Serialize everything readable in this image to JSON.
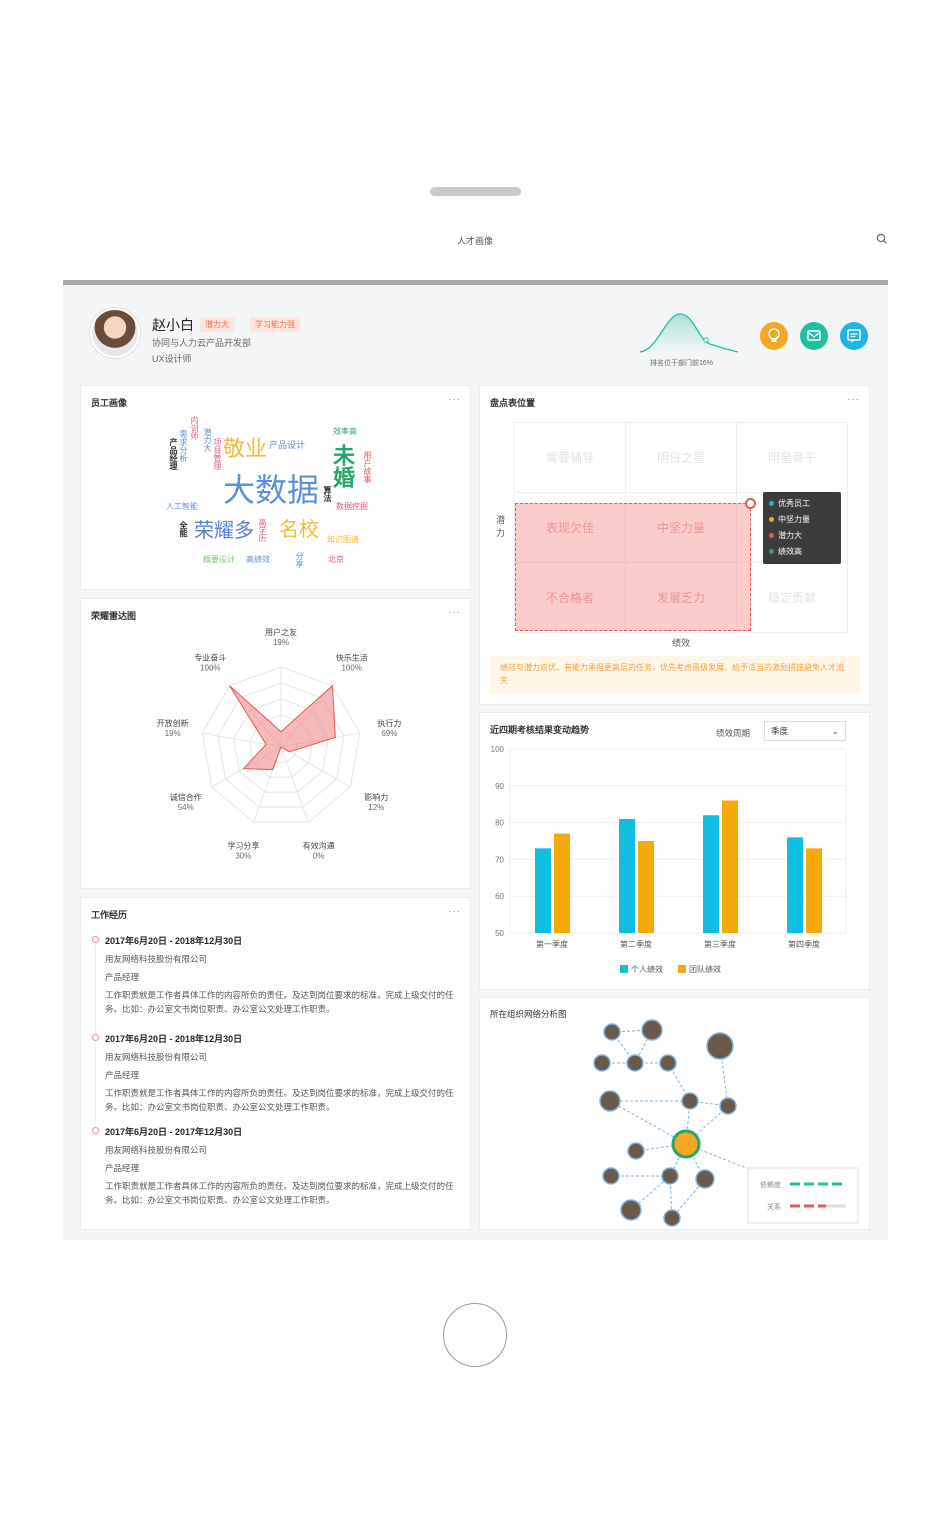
{
  "nav": {
    "title": "人才画像"
  },
  "profile": {
    "name": "赵小白",
    "tags": [
      "潜力大",
      "学习能力强"
    ],
    "department": "协同与人力云产品开发部",
    "job_title": "UX设计师",
    "rank_label": "排名位于部门前16%",
    "actions": [
      "bulb-icon",
      "mail-icon",
      "message-icon"
    ],
    "action_colors": [
      "#f5a623",
      "#1fbfa0",
      "#1eb4e6"
    ]
  },
  "portrait": {
    "title": "员工画像",
    "more": "···",
    "words": [
      {
        "text": "大数据",
        "color": "#5b8fd9"
      },
      {
        "text": "敬业",
        "color": "#f2b93b"
      },
      {
        "text": "未婚",
        "color": "#27a56b"
      },
      {
        "text": "荣耀多",
        "color": "#5b7fcf"
      },
      {
        "text": "名校",
        "color": "#f2b93b"
      },
      {
        "text": "产品设计",
        "color": "#5b8fd9"
      },
      {
        "text": "效率高",
        "color": "#27a56b"
      },
      {
        "text": "人工智能",
        "color": "#5b8fd9"
      },
      {
        "text": "数据挖掘",
        "color": "#e05a8a"
      },
      {
        "text": "知识图谱",
        "color": "#f2b93b"
      },
      {
        "text": "概要设计",
        "color": "#7bc96f"
      },
      {
        "text": "高绩效",
        "color": "#5b8fd9"
      },
      {
        "text": "北京",
        "color": "#e05a5a"
      },
      {
        "text": "内训师",
        "color": "#e05a8a"
      },
      {
        "text": "潜力大",
        "color": "#5b8fd9"
      },
      {
        "text": "需求分析",
        "color": "#5b8fd9"
      },
      {
        "text": "项目管理",
        "color": "#e05a8a"
      },
      {
        "text": "产品经理",
        "color": "#333333"
      },
      {
        "text": "用户故事",
        "color": "#e05a5a"
      },
      {
        "text": "算法",
        "color": "#333333"
      },
      {
        "text": "全能",
        "color": "#333333"
      },
      {
        "text": "高学历",
        "color": "#e05a8a"
      },
      {
        "text": "分享",
        "color": "#1eb4e6"
      }
    ]
  },
  "grid": {
    "title": "盘点表位置",
    "more": "···",
    "y_label": "潜力",
    "x_label": "绩效",
    "cells": [
      "需要辅导",
      "明日之星",
      "明星骨干",
      "表现欠佳",
      "中坚力量",
      "",
      "不合格者",
      "发展乏力",
      "稳定贡献"
    ],
    "legend": [
      {
        "label": "优秀员工",
        "color": "#1eb4e6"
      },
      {
        "label": "中坚力量",
        "color": "#f5a623"
      },
      {
        "label": "潜力大",
        "color": "#e05a5a"
      },
      {
        "label": "绩效高",
        "color": "#27a56b"
      }
    ],
    "note": "绩效与潜力双优，有能力承担更高层的任务，优先考虑晋级发展，给予适当的激励措施避免人才流失"
  },
  "radar": {
    "title": "荣耀雷达图",
    "more": "···",
    "axes": [
      {
        "name": "用户之友",
        "value": "19%"
      },
      {
        "name": "快乐生活",
        "value": "100%"
      },
      {
        "name": "执行力",
        "value": "69%"
      },
      {
        "name": "影响力",
        "value": "12%"
      },
      {
        "name": "有效沟通",
        "value": "0%"
      },
      {
        "name": "学习分享",
        "value": "30%"
      },
      {
        "name": "诚信合作",
        "value": "54%"
      },
      {
        "name": "开放创新",
        "value": "19%"
      },
      {
        "name": "专业奋斗",
        "value": "100%"
      }
    ],
    "fill_color": "#f08a8a"
  },
  "chart_data": {
    "type": "bar",
    "title": "近四期考核结果变动趋势",
    "categories": [
      "第一季度",
      "第二季度",
      "第三季度",
      "第四季度"
    ],
    "series": [
      {
        "name": "个人绩效",
        "values": [
          73,
          81,
          82,
          76
        ],
        "color": "#12bde2"
      },
      {
        "name": "团队绩效",
        "values": [
          77,
          75,
          86,
          73
        ],
        "color": "#f7a90b"
      }
    ],
    "ylim": [
      50,
      100
    ],
    "yticks": [
      50,
      60,
      70,
      80,
      90,
      100
    ],
    "grid": true,
    "legend": "bottom"
  },
  "trend": {
    "more": "···",
    "period_label": "绩效周期",
    "period_value": "季度"
  },
  "work": {
    "title": "工作经历",
    "more": "···",
    "items": [
      {
        "date": "2017年6月20日 - 2018年12月30日",
        "company": "用友网络科技股份有限公司",
        "role": "产品经理",
        "desc": "工作职责就是工作者具体工作的内容所负的责任。及达到岗位要求的标准，完成上级交付的任务。比如：办公室文书岗位职责、办公室公文处理工作职责。"
      },
      {
        "date": "2017年6月20日 - 2018年12月30日",
        "company": "用友网络科技股份有限公司",
        "role": "产品经理",
        "desc": "工作职责就是工作者具体工作的内容所负的责任。及达到岗位要求的标准，完成上级交付的任务。比如：办公室文书岗位职责、办公室公文处理工作职责。"
      },
      {
        "date": "2017年6月20日 - 2017年12月30日",
        "company": "用友网络科技股份有限公司",
        "role": "产品经理",
        "desc": "工作职责就是工作者具体工作的内容所负的责任。及达到岗位要求的标准，完成上级交付的任务。比如：办公室文书岗位职责、办公室公文处理工作职责。"
      }
    ]
  },
  "network": {
    "title": "所在组织网络分析图",
    "legend": [
      {
        "label": "依赖度",
        "color": "#1fbfa0"
      },
      {
        "label": "关系",
        "color": "#e05a5a"
      }
    ]
  }
}
